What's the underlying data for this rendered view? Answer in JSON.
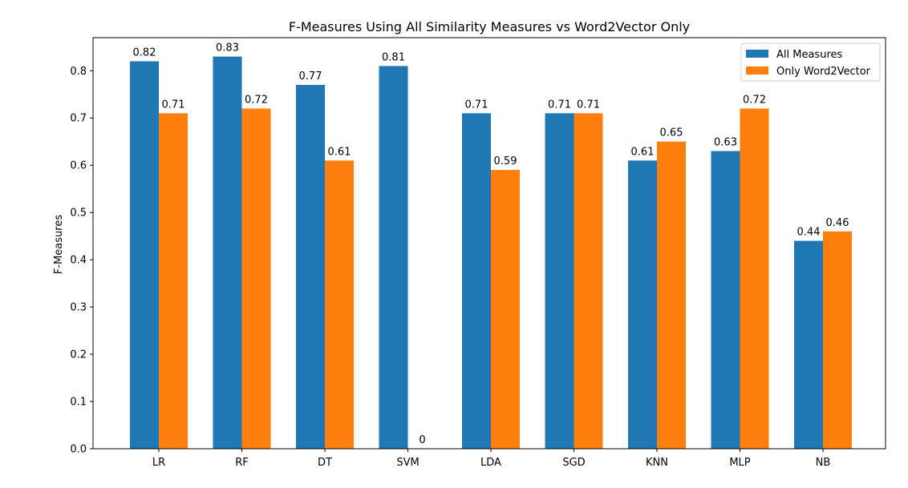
{
  "chart_data": {
    "type": "bar",
    "title": "F-Measures Using All Similarity Measures vs Word2Vector Only",
    "xlabel": "",
    "ylabel": "F-Measures",
    "categories": [
      "LR",
      "RF",
      "DT",
      "SVM",
      "LDA",
      "SGD",
      "KNN",
      "MLP",
      "NB"
    ],
    "series": [
      {
        "name": "All Measures",
        "color": "#1f77b4",
        "values": [
          0.82,
          0.83,
          0.77,
          0.81,
          0.71,
          0.71,
          0.61,
          0.63,
          0.44
        ],
        "labels": [
          "0.82",
          "0.83",
          "0.77",
          "0.81",
          "0.71",
          "0.71",
          "0.61",
          "0.63",
          "0.44"
        ]
      },
      {
        "name": "Only Word2Vector",
        "color": "#ff7f0e",
        "values": [
          0.71,
          0.72,
          0.61,
          0,
          0.59,
          0.71,
          0.65,
          0.72,
          0.46
        ],
        "labels": [
          "0.71",
          "0.72",
          "0.61",
          "0",
          "0.59",
          "0.71",
          "0.65",
          "0.72",
          "0.46"
        ]
      }
    ],
    "ylim": [
      0,
      0.87
    ],
    "yticks": [
      "0.0",
      "0.1",
      "0.2",
      "0.3",
      "0.4",
      "0.5",
      "0.6",
      "0.7",
      "0.8"
    ],
    "grid": false,
    "legend_position": "top-right"
  }
}
